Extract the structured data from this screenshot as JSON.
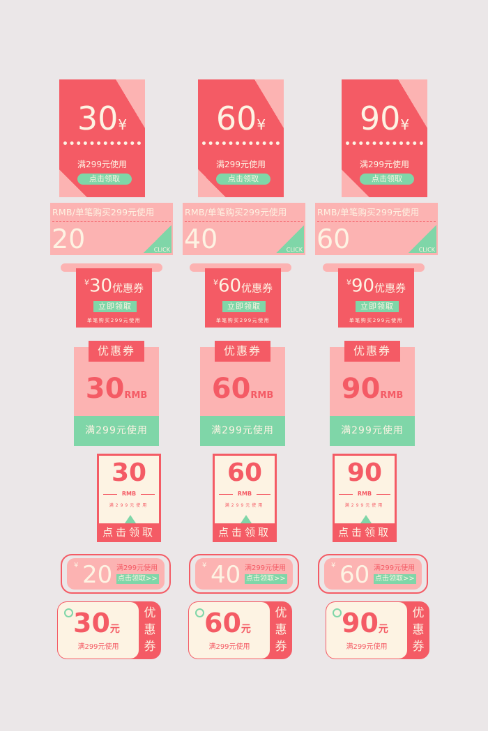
{
  "colors": {
    "red": "#f45b65",
    "pink": "#fcb3b2",
    "green": "#7fd6a8",
    "cream": "#fdf3e3"
  },
  "style1": {
    "yen": "¥",
    "condition": "满299元使用",
    "button": "点击领取",
    "amounts": [
      "30",
      "60",
      "90"
    ]
  },
  "style2": {
    "top": "RMB/单笔购买299元使用",
    "click": "CLICK",
    "amounts": [
      "20",
      "40",
      "60"
    ]
  },
  "style3": {
    "yen": "¥",
    "suffix": "优惠券",
    "button": "立即领取",
    "condition": "单笔购买299元使用",
    "amounts": [
      "30",
      "60",
      "90"
    ]
  },
  "style4": {
    "tab": "优惠券",
    "unit": "RMB",
    "condition": "满299元使用",
    "amounts": [
      "30",
      "60",
      "90"
    ]
  },
  "style5": {
    "unit": "RMB",
    "condition": "满299元使用",
    "button": "点击领取",
    "amounts": [
      "30",
      "60",
      "90"
    ]
  },
  "style6": {
    "yen": "¥",
    "condition": "满299元使用",
    "button": "点击领取>>",
    "amounts": [
      "20",
      "40",
      "60"
    ]
  },
  "style7": {
    "unit": "元",
    "condition": "满299元使用",
    "side": "优惠券",
    "amounts": [
      "30",
      "60",
      "90"
    ]
  }
}
